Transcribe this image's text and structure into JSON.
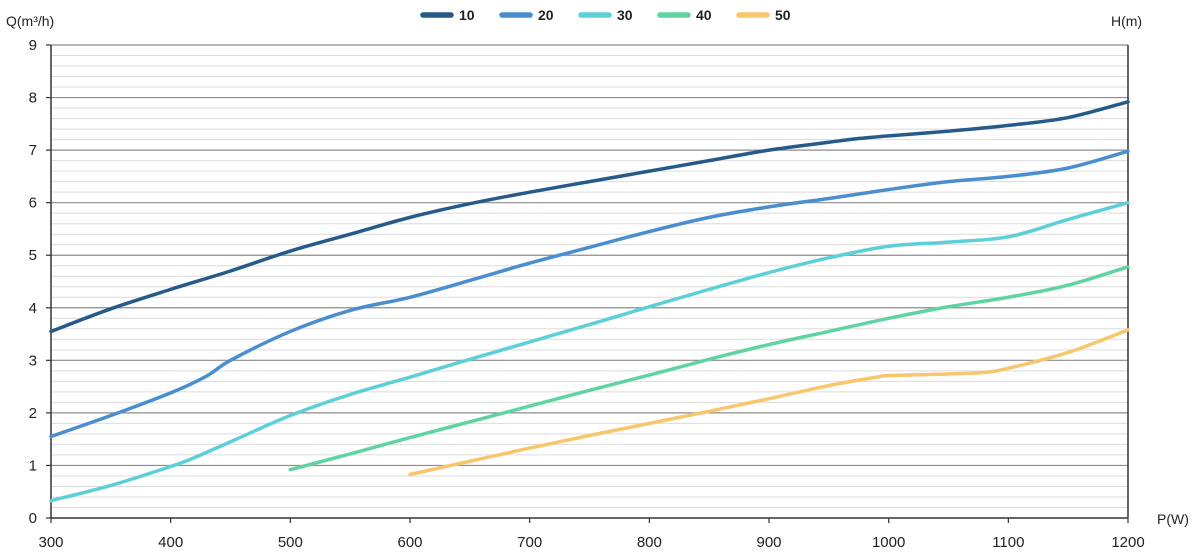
{
  "chart_data": {
    "type": "line",
    "title": "",
    "ylabel_left": "Q(m³/h)",
    "ylabel_right": "H(m)",
    "xlabel": "P(W)",
    "xlim": [
      300,
      1200
    ],
    "ylim": [
      0,
      9
    ],
    "x_ticks": [
      300,
      400,
      500,
      600,
      700,
      800,
      900,
      1000,
      1100,
      1200
    ],
    "y_ticks": [
      0,
      1,
      2,
      3,
      4,
      5,
      6,
      7,
      8,
      9
    ],
    "grid": "horizontal major lines with minor lines",
    "legend_position": "top-center",
    "series": [
      {
        "name": "10",
        "color": "#255a8a",
        "x": [
          300,
          350,
          400,
          450,
          500,
          550,
          600,
          650,
          700,
          750,
          800,
          850,
          900,
          950,
          975,
          1000,
          1050,
          1100,
          1150,
          1200
        ],
        "y": [
          3.55,
          3.98,
          4.35,
          4.7,
          5.08,
          5.4,
          5.72,
          5.98,
          6.2,
          6.4,
          6.6,
          6.8,
          7.0,
          7.15,
          7.22,
          7.27,
          7.36,
          7.47,
          7.62,
          7.92
        ]
      },
      {
        "name": "20",
        "color": "#4a8ed0",
        "x": [
          300,
          350,
          400,
          430,
          450,
          500,
          550,
          600,
          650,
          700,
          750,
          800,
          850,
          900,
          950,
          1000,
          1050,
          1100,
          1150,
          1200
        ],
        "y": [
          1.55,
          1.95,
          2.38,
          2.7,
          3.0,
          3.55,
          3.95,
          4.2,
          4.52,
          4.85,
          5.15,
          5.45,
          5.72,
          5.92,
          6.08,
          6.25,
          6.4,
          6.5,
          6.66,
          6.98
        ]
      },
      {
        "name": "30",
        "color": "#5ccfd8",
        "x": [
          300,
          350,
          400,
          420,
          450,
          500,
          550,
          600,
          650,
          700,
          750,
          800,
          850,
          900,
          950,
          1000,
          1050,
          1100,
          1150,
          1200
        ],
        "y": [
          0.33,
          0.62,
          0.98,
          1.15,
          1.45,
          1.95,
          2.35,
          2.68,
          3.02,
          3.35,
          3.68,
          4.02,
          4.35,
          4.67,
          4.95,
          5.17,
          5.25,
          5.35,
          5.68,
          6.0
        ]
      },
      {
        "name": "40",
        "color": "#5fd4a2",
        "x": [
          500,
          550,
          600,
          650,
          700,
          750,
          800,
          850,
          900,
          950,
          1000,
          1050,
          1100,
          1150,
          1200
        ],
        "y": [
          0.92,
          1.22,
          1.53,
          1.83,
          2.13,
          2.43,
          2.72,
          3.02,
          3.3,
          3.55,
          3.8,
          4.02,
          4.2,
          4.43,
          4.78
        ]
      },
      {
        "name": "50",
        "color": "#f7c66d",
        "x": [
          600,
          650,
          700,
          750,
          800,
          850,
          900,
          950,
          990,
          1000,
          1050,
          1080,
          1100,
          1150,
          1200
        ],
        "y": [
          0.83,
          1.08,
          1.33,
          1.57,
          1.8,
          2.03,
          2.27,
          2.52,
          2.68,
          2.71,
          2.74,
          2.77,
          2.85,
          3.15,
          3.58
        ]
      }
    ]
  }
}
